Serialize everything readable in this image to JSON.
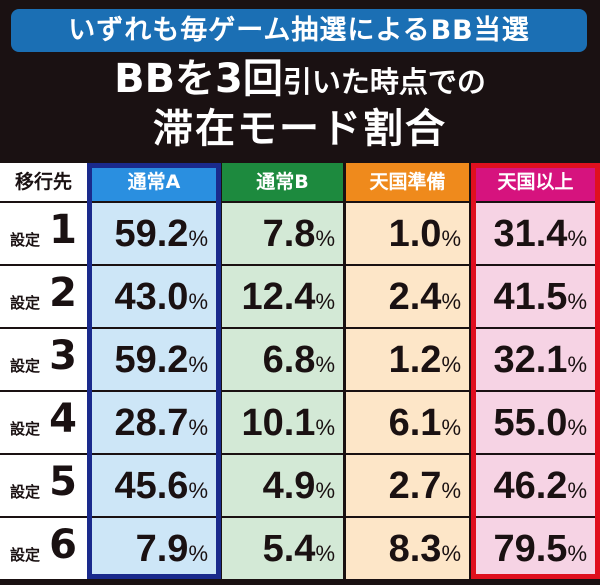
{
  "banner": {
    "text": "いずれも毎ゲーム抽選によるBB当選",
    "color": "#1b6fb4"
  },
  "title": {
    "line1_big_a": "BBを3回",
    "line1_small": "引いた時点での",
    "line2": "滞在モード割合"
  },
  "table": {
    "corner_label": "移行先",
    "columns": [
      {
        "label": "通常A",
        "header_color": "#2a8fe0",
        "cell_color": "#cde6f7"
      },
      {
        "label": "通常B",
        "header_color": "#1d8a3e",
        "cell_color": "#d3e9d6"
      },
      {
        "label": "天国準備",
        "header_color": "#ef8a1c",
        "cell_color": "#fde6c8"
      },
      {
        "label": "天国以上",
        "header_color": "#d6137e",
        "cell_color": "#f6d3e4"
      }
    ],
    "row_prefix": "設定",
    "percent_sign": "%",
    "rows": [
      {
        "setting": "1",
        "values": [
          "59.2",
          "7.8",
          "1.0",
          "31.4"
        ]
      },
      {
        "setting": "2",
        "values": [
          "43.0",
          "12.4",
          "2.4",
          "41.5"
        ]
      },
      {
        "setting": "3",
        "values": [
          "59.2",
          "6.8",
          "1.2",
          "32.1"
        ]
      },
      {
        "setting": "4",
        "values": [
          "28.7",
          "10.1",
          "6.1",
          "55.0"
        ]
      },
      {
        "setting": "5",
        "values": [
          "45.6",
          "4.9",
          "2.7",
          "46.2"
        ]
      },
      {
        "setting": "6",
        "values": [
          "7.9",
          "5.4",
          "8.3",
          "79.5"
        ]
      }
    ],
    "highlight_colors": {
      "column_a_frame": "#1a2a8c",
      "column_d_frame": "#e0101e"
    }
  }
}
